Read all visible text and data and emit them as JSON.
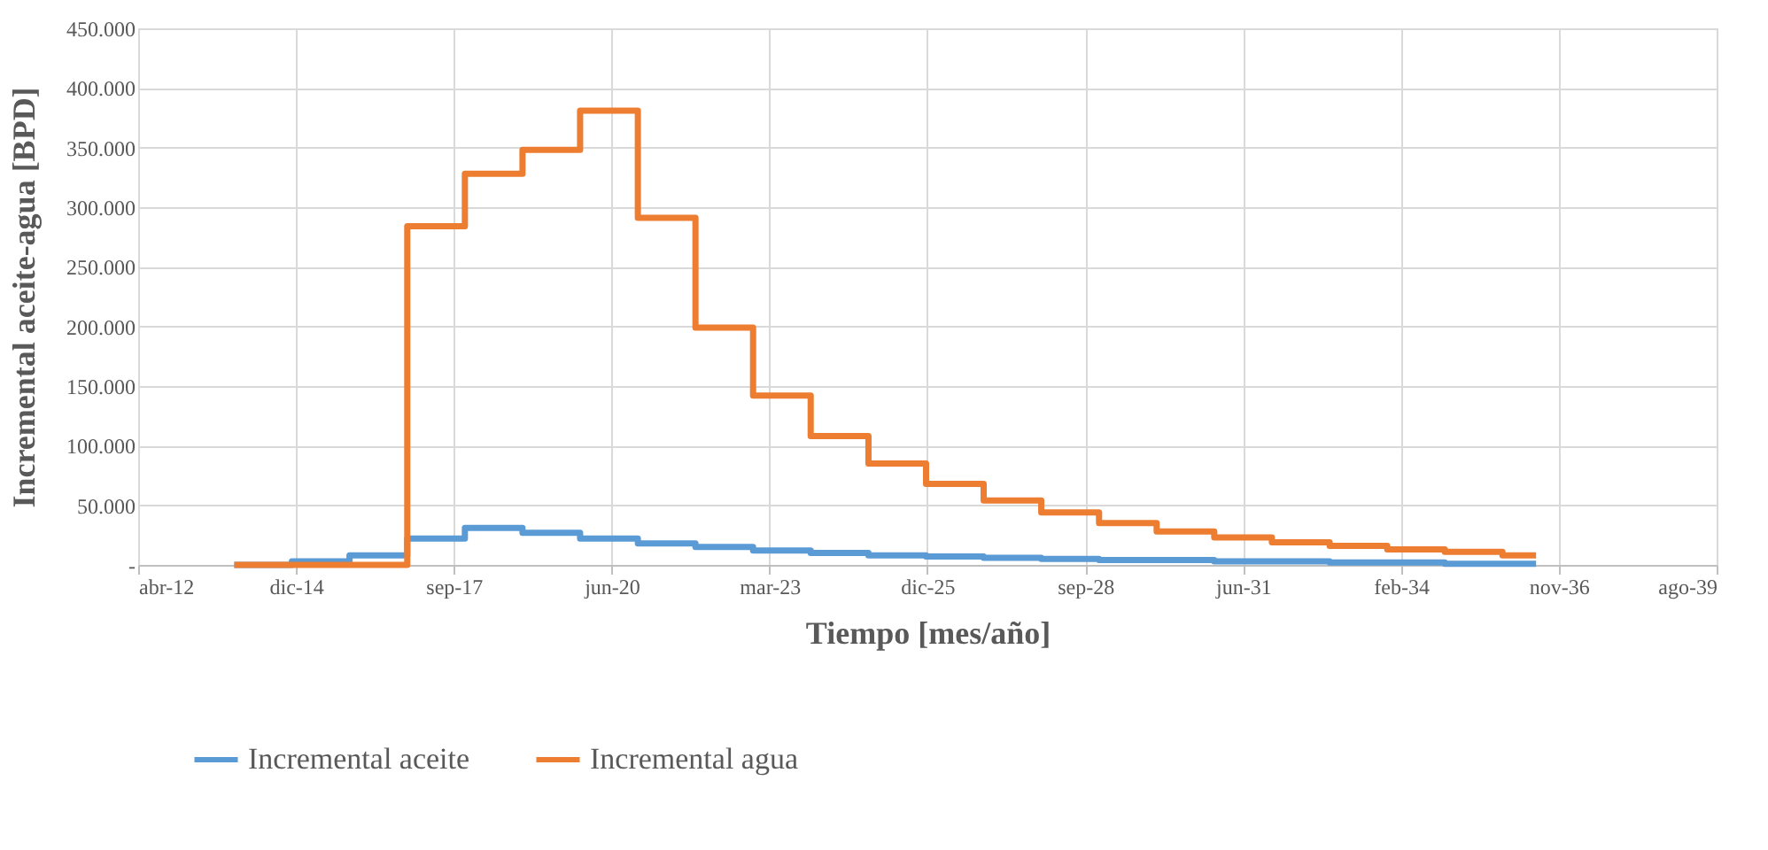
{
  "chart_data": {
    "type": "step",
    "xlabel": "Tiempo [mes/año]",
    "ylabel": "Incremental  aceite-agua [BPD]",
    "x": [
      "2013-12",
      "2014-12",
      "2015-12",
      "2016-12",
      "2017-12",
      "2018-12",
      "2019-12",
      "2020-12",
      "2021-12",
      "2022-12",
      "2023-12",
      "2024-12",
      "2025-12",
      "2026-12",
      "2027-12",
      "2028-12",
      "2029-12",
      "2030-12",
      "2031-12",
      "2032-12",
      "2033-12",
      "2034-12",
      "2035-12",
      "2036-07"
    ],
    "series": [
      {
        "name": "Incremental aceite",
        "color": "#5b9bd5",
        "values": [
          0,
          3000,
          8000,
          22000,
          31000,
          27000,
          22000,
          18000,
          15000,
          12000,
          10000,
          8000,
          7000,
          6000,
          5000,
          4000,
          4000,
          3000,
          3000,
          2000,
          2000,
          1000,
          1000,
          1000
        ]
      },
      {
        "name": "Incremental agua",
        "color": "#ed7d31",
        "values": [
          0,
          0,
          0,
          284000,
          328000,
          348000,
          381000,
          291000,
          199000,
          142000,
          108000,
          85000,
          68000,
          54000,
          44000,
          35000,
          28000,
          23000,
          19000,
          16000,
          13000,
          11000,
          8000,
          8000
        ]
      }
    ],
    "xlim": [
      "2012-04-01",
      "2039-08-19"
    ],
    "xticks": [
      {
        "value": "2012-04-01",
        "label": "abr-12"
      },
      {
        "value": "2014-12-27",
        "label": "dic-14"
      },
      {
        "value": "2017-09-22",
        "label": "sep-17"
      },
      {
        "value": "2020-06-18",
        "label": "jun-20"
      },
      {
        "value": "2023-03-15",
        "label": "mar-23"
      },
      {
        "value": "2025-12-09",
        "label": "dic-25"
      },
      {
        "value": "2028-09-05",
        "label": "sep-28"
      },
      {
        "value": "2031-06-02",
        "label": "jun-31"
      },
      {
        "value": "2034-02-26",
        "label": "feb-34"
      },
      {
        "value": "2036-11-22",
        "label": "nov-36"
      },
      {
        "value": "2039-08-19",
        "label": "ago-39"
      }
    ],
    "ylim": [
      0,
      450000
    ],
    "yticks": [
      {
        "value": 0,
        "label": "-"
      },
      {
        "value": 50000,
        "label": "50.000"
      },
      {
        "value": 100000,
        "label": "100.000"
      },
      {
        "value": 150000,
        "label": "150.000"
      },
      {
        "value": 200000,
        "label": "200.000"
      },
      {
        "value": 250000,
        "label": "250.000"
      },
      {
        "value": 300000,
        "label": "300.000"
      },
      {
        "value": 350000,
        "label": "350.000"
      },
      {
        "value": 400000,
        "label": "400.000"
      },
      {
        "value": 450000,
        "label": "450.000"
      }
    ],
    "grid": true,
    "legend": "bottom"
  }
}
